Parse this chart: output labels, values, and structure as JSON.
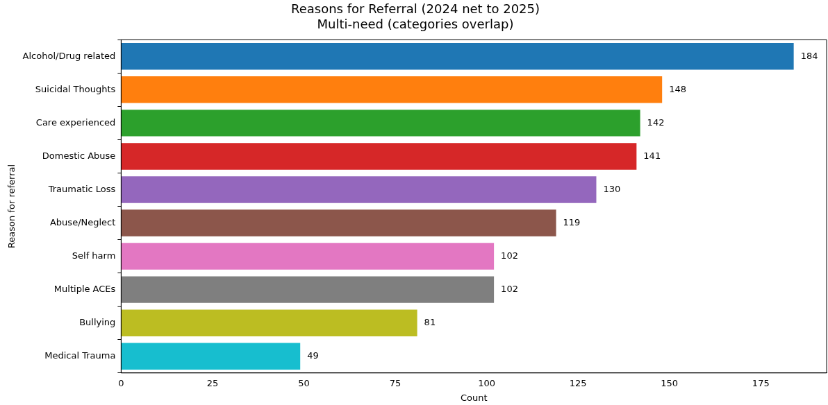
{
  "chart_data": {
    "type": "bar",
    "orientation": "horizontal",
    "title": "Reasons for Referral (2024 net to 2025)",
    "subtitle": "Multi-need (categories overlap)",
    "xlabel": "Count",
    "ylabel": "Reason for referral",
    "categories": [
      "Alcohol/Drug related",
      "Suicidal Thoughts",
      "Care experienced",
      "Domestic Abuse",
      "Traumatic Loss",
      "Abuse/Neglect",
      "Self harm",
      "Multiple ACEs",
      "Bullying",
      "Medical Trauma"
    ],
    "values": [
      184,
      148,
      142,
      141,
      130,
      119,
      102,
      102,
      81,
      49
    ],
    "colors": [
      "#1f77b4",
      "#ff7f0e",
      "#2ca02c",
      "#d62728",
      "#9467bd",
      "#8c564b",
      "#e377c2",
      "#7f7f7f",
      "#bcbd22",
      "#17becf"
    ],
    "xlim": [
      0,
      193
    ],
    "xticks": [
      0,
      25,
      50,
      75,
      100,
      125,
      150,
      175
    ],
    "data_labels": true,
    "grid": false,
    "legend": false
  }
}
